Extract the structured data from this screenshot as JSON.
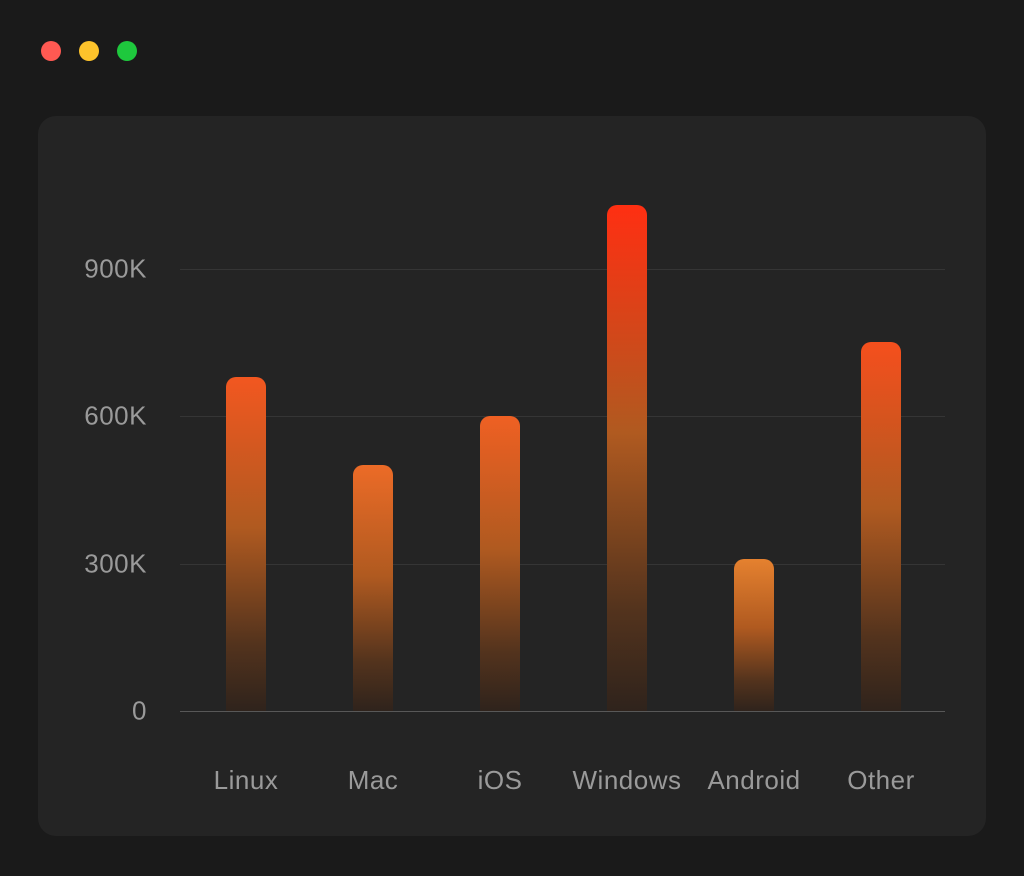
{
  "window": {
    "controls": [
      {
        "name": "close",
        "color": "#ff5952"
      },
      {
        "name": "minimize",
        "color": "#fdc32b"
      },
      {
        "name": "zoom",
        "color": "#1ec83d"
      }
    ]
  },
  "chart_data": {
    "type": "bar",
    "categories": [
      "Linux",
      "Mac",
      "iOS",
      "Windows",
      "Android",
      "Other"
    ],
    "values": [
      680000,
      500000,
      600000,
      1030000,
      310000,
      750000
    ],
    "title": "",
    "xlabel": "",
    "ylabel": "",
    "y_ticks": [
      {
        "label": "900K",
        "value": 900000
      },
      {
        "label": "600K",
        "value": 600000
      },
      {
        "label": "300K",
        "value": 300000
      },
      {
        "label": "0",
        "value": 0
      }
    ],
    "ylim": [
      0,
      1150000
    ],
    "grid": "horizontal",
    "legend": "none",
    "colors": {
      "bar_gradient_top_max": "#ff2f12",
      "bar_gradient_top_min": "#e5812f",
      "bar_gradient_mid1": "#b05a20",
      "bar_gradient_mid2": "#53331d",
      "bar_gradient_bottom": "#2f231c",
      "axis_label": "#9a9a9a",
      "gridline": "rgba(255,255,255,0.08)",
      "panel_bg": "#242424",
      "page_bg": "#1a1a1a"
    }
  }
}
